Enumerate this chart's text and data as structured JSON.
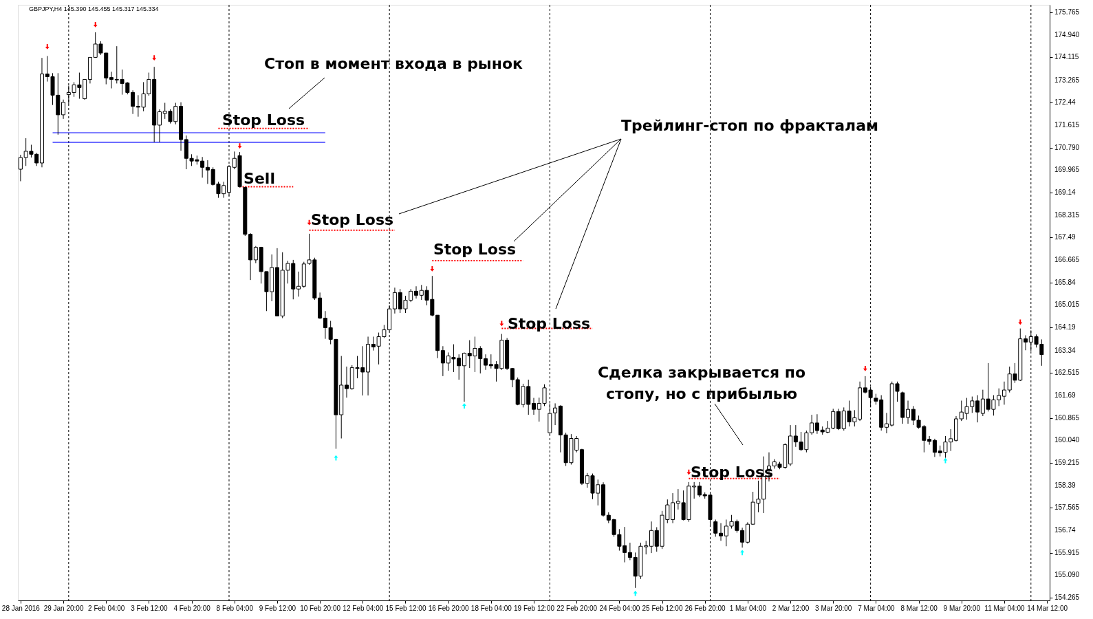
{
  "chart_data": {
    "type": "candlestick",
    "categories": [
      "28 Jan 2016",
      null,
      null,
      null,
      null,
      null,
      null,
      null,
      "29 Jan 20:00",
      null,
      null,
      null,
      null,
      null,
      null,
      null,
      "2 Feb 04:00",
      null,
      null,
      null,
      null,
      null,
      null,
      null,
      "3 Feb 12:00",
      null,
      null,
      null,
      null,
      null,
      null,
      null,
      "4 Feb 20:00",
      null,
      null,
      null,
      null,
      null,
      null,
      null,
      "8 Feb 04:00",
      null,
      null,
      null,
      null,
      null,
      null,
      null,
      "9 Feb 12:00",
      null,
      null,
      null,
      null,
      null,
      null,
      null,
      "10 Feb 20:00",
      null,
      null,
      null,
      null,
      null,
      null,
      null,
      "12 Feb 04:00",
      null,
      null,
      null,
      null,
      null,
      null,
      null,
      "15 Feb 12:00",
      null,
      null,
      null,
      null,
      null,
      null,
      null,
      "16 Feb 20:00",
      null,
      null,
      null,
      null,
      null,
      null,
      null,
      "18 Feb 04:00",
      null,
      null,
      null,
      null,
      null,
      null,
      null,
      "19 Feb 12:00",
      null,
      null,
      null,
      null,
      null,
      null,
      null,
      "22 Feb 20:00",
      null,
      null,
      null,
      null,
      null,
      null,
      null,
      "24 Feb 04:00",
      null,
      null,
      null,
      null,
      null,
      null,
      null,
      "25 Feb 12:00",
      null,
      null,
      null,
      null,
      null,
      null,
      null,
      "26 Feb 20:00",
      null,
      null,
      null,
      null,
      null,
      null,
      null,
      "1 Mar 04:00",
      null,
      null,
      null,
      null,
      null,
      null,
      null,
      "2 Mar 12:00",
      null,
      null,
      null,
      null,
      null,
      null,
      null,
      "3 Mar 20:00",
      null,
      null,
      null,
      null,
      null,
      null,
      null,
      "7 Mar 04:00",
      null,
      null,
      null,
      null,
      null,
      null,
      null,
      "8 Mar 12:00",
      null,
      null,
      null,
      null,
      null,
      null,
      null,
      "9 Mar 20:00",
      null,
      null,
      null,
      null,
      null,
      null,
      null,
      "11 Mar 04:00",
      null,
      null,
      null,
      null,
      null,
      null,
      null,
      "14 Mar 12:00"
    ],
    "ohlc": [
      [
        170.0,
        170.53,
        169.56,
        170.43
      ],
      [
        170.43,
        171.14,
        170.12,
        170.66
      ],
      [
        170.66,
        170.9,
        170.43,
        170.55
      ],
      [
        170.55,
        170.6,
        170.12,
        170.23
      ],
      [
        170.23,
        174.09,
        170.07,
        173.5
      ],
      [
        173.5,
        174.16,
        173.22,
        173.4
      ],
      [
        173.4,
        173.53,
        172.36,
        172.72
      ],
      [
        172.72,
        173.53,
        171.27,
        172.0
      ],
      [
        172.0,
        172.56,
        171.85,
        172.46
      ],
      [
        172.74,
        173.07,
        172.39,
        172.82
      ],
      [
        172.82,
        173.2,
        172.66,
        173.1
      ],
      [
        173.1,
        173.55,
        172.59,
        173.0
      ],
      [
        172.59,
        173.3,
        172.55,
        173.3
      ],
      [
        173.3,
        174.11,
        173.15,
        174.11
      ],
      [
        174.11,
        175.03,
        174.09,
        174.6
      ],
      [
        174.6,
        174.7,
        174.2,
        174.27
      ],
      [
        174.27,
        174.27,
        173.12,
        173.35
      ],
      [
        173.37,
        173.58,
        172.97,
        173.3
      ],
      [
        173.3,
        174.52,
        173.15,
        173.28
      ],
      [
        173.3,
        173.66,
        172.74,
        173.15
      ],
      [
        173.17,
        173.2,
        172.75,
        172.82
      ],
      [
        172.82,
        172.9,
        172.03,
        172.31
      ],
      [
        172.31,
        172.72,
        171.93,
        172.28
      ],
      [
        172.28,
        173.2,
        172.13,
        172.77
      ],
      [
        172.77,
        173.55,
        172.7,
        173.3
      ],
      [
        173.3,
        173.76,
        170.99,
        171.62
      ],
      [
        171.62,
        172.2,
        170.99,
        172.11
      ],
      [
        172.05,
        172.44,
        171.85,
        172.13
      ],
      [
        172.13,
        172.2,
        171.68,
        171.75
      ],
      [
        171.75,
        172.44,
        171.65,
        172.31
      ],
      [
        172.31,
        172.46,
        170.68,
        171.09
      ],
      [
        171.09,
        171.24,
        170.0,
        170.4
      ],
      [
        170.4,
        170.55,
        170.12,
        170.3
      ],
      [
        170.35,
        170.5,
        170.17,
        170.3
      ],
      [
        170.3,
        170.45,
        169.69,
        170.07
      ],
      [
        170.07,
        170.33,
        169.46,
        169.97
      ],
      [
        169.99,
        170.07,
        169.4,
        169.44
      ],
      [
        169.46,
        169.54,
        168.95,
        169.1
      ],
      [
        169.1,
        169.54,
        168.95,
        169.4
      ],
      [
        169.15,
        170.15,
        169.03,
        170.1
      ],
      [
        170.07,
        170.65,
        170.0,
        170.4
      ],
      [
        170.5,
        170.63,
        169.33,
        169.36
      ],
      [
        169.33,
        169.36,
        167.55,
        167.61
      ],
      [
        167.61,
        167.65,
        165.93,
        166.67
      ],
      [
        166.67,
        167.18,
        166.55,
        167.13
      ],
      [
        167.13,
        167.15,
        165.8,
        166.24
      ],
      [
        166.24,
        166.24,
        164.79,
        165.5
      ],
      [
        165.5,
        166.87,
        165.15,
        166.39
      ],
      [
        166.39,
        167.1,
        164.61,
        164.61
      ],
      [
        164.61,
        166.95,
        164.53,
        166.29
      ],
      [
        166.29,
        166.64,
        165.8,
        166.54
      ],
      [
        166.54,
        166.67,
        165.22,
        165.6
      ],
      [
        165.6,
        166.24,
        165.32,
        165.7
      ],
      [
        165.7,
        166.6,
        165.65,
        166.52
      ],
      [
        166.54,
        167.63,
        166.49,
        166.67
      ],
      [
        166.67,
        166.75,
        165.2,
        165.27
      ],
      [
        165.27,
        165.47,
        164.5,
        164.53
      ],
      [
        164.53,
        164.79,
        163.77,
        164.18
      ],
      [
        164.18,
        164.43,
        163.57,
        163.75
      ],
      [
        163.75,
        163.77,
        159.73,
        160.98
      ],
      [
        160.98,
        163.14,
        160.11,
        162.07
      ],
      [
        162.07,
        162.75,
        161.61,
        161.94
      ],
      [
        161.94,
        162.8,
        161.9,
        162.71
      ],
      [
        162.71,
        163.14,
        162.32,
        162.68
      ],
      [
        162.71,
        163.5,
        161.69,
        162.55
      ],
      [
        162.55,
        163.85,
        161.69,
        163.57
      ],
      [
        163.57,
        163.85,
        163.34,
        163.47
      ],
      [
        163.5,
        164.0,
        162.83,
        163.85
      ],
      [
        163.85,
        164.28,
        163.8,
        164.1
      ],
      [
        164.1,
        165.0,
        164.05,
        164.87
      ],
      [
        164.87,
        165.65,
        164.7,
        165.47
      ],
      [
        165.47,
        165.6,
        164.72,
        164.87
      ],
      [
        164.87,
        165.35,
        164.72,
        165.19
      ],
      [
        165.19,
        165.6,
        165.12,
        165.52
      ],
      [
        165.52,
        165.7,
        165.25,
        165.37
      ],
      [
        165.37,
        165.75,
        165.2,
        165.55
      ],
      [
        165.55,
        165.7,
        165.0,
        165.19
      ],
      [
        165.22,
        166.08,
        164.6,
        164.64
      ],
      [
        164.64,
        164.64,
        163.06,
        163.34
      ],
      [
        163.34,
        163.5,
        162.4,
        162.88
      ],
      [
        162.88,
        163.27,
        162.6,
        163.14
      ],
      [
        163.09,
        163.57,
        162.55,
        163.03
      ],
      [
        163.06,
        163.2,
        162.27,
        162.78
      ],
      [
        162.78,
        163.27,
        161.46,
        163.24
      ],
      [
        163.24,
        163.72,
        162.7,
        163.14
      ],
      [
        163.14,
        163.85,
        162.55,
        163.42
      ],
      [
        163.42,
        163.5,
        162.5,
        163.04
      ],
      [
        163.04,
        163.2,
        162.63,
        162.8
      ],
      [
        162.83,
        163.2,
        162.68,
        162.78
      ],
      [
        162.83,
        162.95,
        162.2,
        162.68
      ],
      [
        162.68,
        163.95,
        162.63,
        163.72
      ],
      [
        163.72,
        163.8,
        162.63,
        162.68
      ],
      [
        162.68,
        162.7,
        161.99,
        162.27
      ],
      [
        162.27,
        162.35,
        161.33,
        161.36
      ],
      [
        161.36,
        162.12,
        161.25,
        162.02
      ],
      [
        162.02,
        162.27,
        160.98,
        161.36
      ],
      [
        161.4,
        161.6,
        160.98,
        161.18
      ],
      [
        161.18,
        161.61,
        160.73,
        161.4
      ],
      [
        161.4,
        162.1,
        161.3,
        161.97
      ],
      [
        160.32,
        161.4,
        160.25,
        161.03
      ],
      [
        161.05,
        161.4,
        160.6,
        161.23
      ],
      [
        161.3,
        161.33,
        159.6,
        160.24
      ],
      [
        160.24,
        160.32,
        159.1,
        159.22
      ],
      [
        159.22,
        160.27,
        159.15,
        160.11
      ],
      [
        159.68,
        160.2,
        159.6,
        160.11
      ],
      [
        159.7,
        159.73,
        158.4,
        158.46
      ],
      [
        158.46,
        158.84,
        158.3,
        158.74
      ],
      [
        158.74,
        158.82,
        157.88,
        158.1
      ],
      [
        158.1,
        158.6,
        157.65,
        158.41
      ],
      [
        158.41,
        158.5,
        157.24,
        157.29
      ],
      [
        157.29,
        157.4,
        157.0,
        157.11
      ],
      [
        157.13,
        157.16,
        156.5,
        156.58
      ],
      [
        156.58,
        156.78,
        155.99,
        156.15
      ],
      [
        156.17,
        156.86,
        155.56,
        155.92
      ],
      [
        155.92,
        156.28,
        155.64,
        155.74
      ],
      [
        155.74,
        155.92,
        154.62,
        155.05
      ],
      [
        155.05,
        156.28,
        154.95,
        156.15
      ],
      [
        156.13,
        156.35,
        155.85,
        156.17
      ],
      [
        156.15,
        157.06,
        155.9,
        156.73
      ],
      [
        156.73,
        156.85,
        155.95,
        156.15
      ],
      [
        156.15,
        157.45,
        156.05,
        157.29
      ],
      [
        157.13,
        157.87,
        157.0,
        157.67
      ],
      [
        157.13,
        158.1,
        157.0,
        157.75
      ],
      [
        157.73,
        158.25,
        157.5,
        157.8
      ],
      [
        157.75,
        158.2,
        157.1,
        157.13
      ],
      [
        157.13,
        158.51,
        157.05,
        158.36
      ],
      [
        158.33,
        158.51,
        157.9,
        158.36
      ],
      [
        158.36,
        158.51,
        157.95,
        158.03
      ],
      [
        158.05,
        158.13,
        157.9,
        158.0
      ],
      [
        158.03,
        158.1,
        156.86,
        157.13
      ],
      [
        157.05,
        157.13,
        156.5,
        156.63
      ],
      [
        156.63,
        157.0,
        156.35,
        156.53
      ],
      [
        156.53,
        157.13,
        156.15,
        156.89
      ],
      [
        156.89,
        157.3,
        156.8,
        157.06
      ],
      [
        157.06,
        157.13,
        156.65,
        156.73
      ],
      [
        156.73,
        156.83,
        156.1,
        156.3
      ],
      [
        156.3,
        157.03,
        156.25,
        156.96
      ],
      [
        156.96,
        158.15,
        156.94,
        157.77
      ],
      [
        157.73,
        158.56,
        157.4,
        157.88
      ],
      [
        157.88,
        159.45,
        157.37,
        158.72
      ],
      [
        158.98,
        159.6,
        158.53,
        159.1
      ],
      [
        159.1,
        159.35,
        159.0,
        159.25
      ],
      [
        159.17,
        159.25,
        158.98,
        159.05
      ],
      [
        159.05,
        159.93,
        159.0,
        159.88
      ],
      [
        159.17,
        160.6,
        159.1,
        160.2
      ],
      [
        160.2,
        160.6,
        159.8,
        159.98
      ],
      [
        159.98,
        160.35,
        159.65,
        159.7
      ],
      [
        159.7,
        160.4,
        159.6,
        160.32
      ],
      [
        160.32,
        160.98,
        160.25,
        160.68
      ],
      [
        160.68,
        161.0,
        160.28,
        160.4
      ],
      [
        160.42,
        160.55,
        160.25,
        160.35
      ],
      [
        160.34,
        160.75,
        160.3,
        160.49
      ],
      [
        160.49,
        161.2,
        160.45,
        161.1
      ],
      [
        161.1,
        161.2,
        160.42,
        160.47
      ],
      [
        160.47,
        161.25,
        160.4,
        161.12
      ],
      [
        161.12,
        161.5,
        160.55,
        160.72
      ],
      [
        160.72,
        161.15,
        160.55,
        160.87
      ],
      [
        160.82,
        162.2,
        160.75,
        161.97
      ],
      [
        161.97,
        162.4,
        161.76,
        161.81
      ],
      [
        161.89,
        162.0,
        161.25,
        161.61
      ],
      [
        161.59,
        161.75,
        161.35,
        161.48
      ],
      [
        161.53,
        161.7,
        160.4,
        160.52
      ],
      [
        160.52,
        161.05,
        160.3,
        160.65
      ],
      [
        160.6,
        162.2,
        160.55,
        162.12
      ],
      [
        162.12,
        162.2,
        161.46,
        161.84
      ],
      [
        161.79,
        161.83,
        160.65,
        160.88
      ],
      [
        160.88,
        161.5,
        160.65,
        161.18
      ],
      [
        161.18,
        161.3,
        160.6,
        160.78
      ],
      [
        160.78,
        160.95,
        160.47,
        160.52
      ],
      [
        160.55,
        160.6,
        159.6,
        160.04
      ],
      [
        160.08,
        160.2,
        159.88,
        160.0
      ],
      [
        160.04,
        160.1,
        159.43,
        159.6
      ],
      [
        159.65,
        159.85,
        159.45,
        159.58
      ],
      [
        159.6,
        160.2,
        159.4,
        159.98
      ],
      [
        159.98,
        160.45,
        159.65,
        160.1
      ],
      [
        160.04,
        160.93,
        160.0,
        160.83
      ],
      [
        160.83,
        161.5,
        160.75,
        161.08
      ],
      [
        161.03,
        161.6,
        160.8,
        161.28
      ],
      [
        161.28,
        161.65,
        161.05,
        161.49
      ],
      [
        161.49,
        161.7,
        160.7,
        161.08
      ],
      [
        161.03,
        161.9,
        160.93,
        161.56
      ],
      [
        161.56,
        162.88,
        161.1,
        161.18
      ],
      [
        161.18,
        161.7,
        160.95,
        161.53
      ],
      [
        161.53,
        161.95,
        161.3,
        161.69
      ],
      [
        161.66,
        162.2,
        161.35,
        161.89
      ],
      [
        161.89,
        162.75,
        161.8,
        162.48
      ],
      [
        162.48,
        162.88,
        162.15,
        162.25
      ],
      [
        162.25,
        164.15,
        162.22,
        163.77
      ],
      [
        163.77,
        163.9,
        163.35,
        163.65
      ],
      [
        163.65,
        164.08,
        163.32,
        163.85
      ],
      [
        163.85,
        163.93,
        163.45,
        163.57
      ],
      [
        163.57,
        163.75,
        162.78,
        163.19
      ],
      null
    ],
    "ylim": [
      154.16,
      176.04
    ],
    "yticks": [
      175.765,
      {
        "value": 174.94,
        "label": "174.940"
      },
      174.115,
      173.265,
      172.44,
      171.615,
      {
        "value": 170.79,
        "label": "170.790"
      },
      169.965,
      169.14,
      168.315,
      167.49,
      166.665,
      165.84,
      165.015,
      164.19,
      163.34,
      162.515,
      161.69,
      160.865,
      {
        "value": 160.04,
        "label": "160.040"
      },
      159.215,
      158.39,
      157.565,
      156.74,
      155.915,
      {
        "value": 155.09,
        "label": "155.090"
      },
      154.265
    ],
    "grid": false,
    "series": [
      {
        "type": "scatter",
        "marker": "triangle",
        "color": "#ff0000",
        "values": [
          null,
          null,
          null,
          null,
          null,
          174.5,
          null,
          null,
          null,
          null,
          null,
          null,
          null,
          null,
          175.31,
          null,
          null,
          null,
          null,
          null,
          null,
          null,
          null,
          null,
          null,
          174.09,
          null,
          null,
          null,
          null,
          null,
          null,
          null,
          null,
          null,
          null,
          null,
          null,
          null,
          null,
          null,
          170.86,
          null,
          null,
          null,
          null,
          null,
          null,
          null,
          null,
          null,
          null,
          null,
          null,
          168.04,
          null,
          null,
          null,
          null,
          null,
          null,
          null,
          null,
          null,
          null,
          null,
          null,
          null,
          null,
          null,
          null,
          null,
          null,
          null,
          null,
          null,
          null,
          166.34,
          null,
          null,
          null,
          null,
          null,
          null,
          null,
          null,
          null,
          null,
          null,
          null,
          164.33,
          null,
          null,
          null,
          null,
          null,
          null,
          null,
          null,
          null,
          null,
          null,
          null,
          null,
          null,
          null,
          null,
          null,
          null,
          null,
          null,
          null,
          null,
          null,
          null,
          null,
          null,
          null,
          null,
          null,
          null,
          null,
          null,
          null,
          null,
          158.87,
          null,
          null,
          null,
          null,
          null,
          null,
          null,
          null,
          null,
          null,
          null,
          null,
          null,
          null,
          null,
          null,
          null,
          null,
          null,
          null,
          null,
          null,
          null,
          null,
          null,
          null,
          null,
          null,
          null,
          null,
          null,
          null,
          162.68,
          null,
          null,
          null,
          null,
          null,
          null,
          null,
          null,
          null,
          null,
          null,
          null,
          null,
          null,
          null,
          null,
          null,
          null,
          null,
          null,
          null,
          null,
          null,
          null,
          null,
          null,
          null,
          null,
          164.38,
          null,
          null,
          null,
          null,
          null
        ]
      },
      {
        "type": "scatter",
        "marker": "triangle",
        "color": "#00ffff",
        "values": [
          null,
          null,
          null,
          null,
          null,
          null,
          null,
          null,
          null,
          null,
          null,
          null,
          null,
          null,
          null,
          null,
          null,
          null,
          null,
          null,
          null,
          null,
          null,
          null,
          null,
          null,
          null,
          null,
          null,
          null,
          null,
          null,
          null,
          null,
          null,
          null,
          null,
          null,
          null,
          null,
          null,
          null,
          null,
          null,
          null,
          null,
          null,
          null,
          null,
          null,
          null,
          null,
          null,
          null,
          null,
          null,
          null,
          null,
          null,
          159.4,
          null,
          null,
          null,
          null,
          null,
          null,
          null,
          null,
          null,
          null,
          null,
          null,
          null,
          null,
          null,
          null,
          null,
          null,
          null,
          null,
          null,
          null,
          null,
          161.31,
          null,
          null,
          null,
          null,
          null,
          null,
          null,
          null,
          null,
          null,
          null,
          null,
          null,
          null,
          null,
          null,
          null,
          null,
          null,
          null,
          null,
          null,
          null,
          null,
          null,
          null,
          null,
          null,
          null,
          null,
          null,
          154.42,
          null,
          null,
          null,
          null,
          null,
          null,
          null,
          null,
          null,
          null,
          null,
          null,
          null,
          null,
          null,
          null,
          null,
          null,
          null,
          155.92,
          null,
          null,
          null,
          null,
          null,
          null,
          null,
          null,
          null,
          null,
          null,
          null,
          null,
          null,
          null,
          null,
          null,
          null,
          null,
          null,
          null,
          null,
          null,
          null,
          null,
          null,
          null,
          null,
          null,
          null,
          null,
          null,
          null,
          null,
          null,
          null,
          null,
          159.3,
          null,
          null,
          null,
          null,
          null,
          null,
          null,
          null,
          null,
          null,
          null,
          null,
          null,
          null,
          null,
          null,
          null,
          null,
          null
        ]
      },
      {
        "type": "line",
        "color": "#ff0000",
        "line_style": "dotted",
        "values": [
          null,
          null,
          null,
          null,
          null,
          null,
          null,
          null,
          null,
          null,
          null,
          null,
          null,
          null,
          null,
          null,
          null,
          null,
          null,
          null,
          null,
          null,
          null,
          null,
          null,
          null,
          null,
          null,
          null,
          null,
          null,
          null,
          null,
          null,
          null,
          null,
          null,
          171.5,
          171.5,
          171.5,
          171.5,
          171.5,
          171.5,
          171.5,
          171.5,
          171.5,
          171.5,
          171.5,
          171.5,
          171.5,
          171.5,
          171.5,
          171.5,
          171.5,
          171.5,
          null,
          null,
          null,
          null,
          null,
          null,
          null,
          null,
          null,
          null,
          null,
          null,
          null,
          null,
          null,
          null,
          null,
          null,
          null,
          null,
          null,
          null,
          166.64,
          166.64,
          166.64,
          166.64,
          166.64,
          166.64,
          166.64,
          166.64,
          166.64,
          166.64,
          166.64,
          166.64,
          166.64,
          166.64,
          166.64,
          166.64,
          166.64,
          166.64,
          null,
          null,
          null,
          null,
          null,
          null,
          null,
          null,
          null,
          null,
          null,
          null,
          null,
          null,
          null,
          null,
          null,
          null,
          null,
          null,
          null,
          null,
          null,
          null,
          null,
          null,
          null,
          null,
          null,
          null,
          158.64,
          158.64,
          158.64,
          158.64,
          158.64,
          158.64,
          158.64,
          158.64,
          158.64,
          158.64,
          158.64,
          158.64,
          158.64,
          158.64,
          158.64,
          158.64,
          158.64,
          158.64,
          null,
          null,
          null,
          null,
          null,
          null,
          null,
          null,
          null,
          null,
          null,
          null,
          null,
          null,
          null,
          null,
          null,
          null,
          null,
          null,
          null,
          null,
          null,
          null,
          null,
          null,
          null,
          null,
          null,
          null,
          null,
          null,
          null,
          null,
          null,
          null,
          null,
          null,
          null,
          null,
          null,
          null,
          null,
          null,
          null,
          null,
          null,
          null,
          null,
          null
        ]
      },
      {
        "type": "line",
        "color": "#ff0000",
        "line_style": "dotted",
        "values": [
          null,
          null,
          null,
          null,
          null,
          null,
          null,
          null,
          null,
          null,
          null,
          null,
          null,
          null,
          null,
          null,
          null,
          null,
          null,
          null,
          null,
          null,
          null,
          null,
          null,
          null,
          null,
          null,
          null,
          null,
          null,
          null,
          null,
          null,
          null,
          null,
          null,
          null,
          null,
          null,
          null,
          169.36,
          169.36,
          169.36,
          169.36,
          169.36,
          169.36,
          169.36,
          169.36,
          169.36,
          169.36,
          169.36,
          null,
          null,
          167.76,
          167.76,
          167.76,
          167.76,
          167.76,
          167.76,
          167.76,
          167.76,
          167.76,
          167.76,
          167.76,
          167.76,
          167.76,
          167.76,
          167.76,
          167.76,
          167.76,
          null,
          null,
          null,
          null,
          null,
          null,
          null,
          null,
          null,
          null,
          null,
          null,
          null,
          null,
          null,
          null,
          null,
          null,
          null,
          164.15,
          164.15,
          164.15,
          164.15,
          164.15,
          164.15,
          164.15,
          164.15,
          164.15,
          164.15,
          164.15,
          164.15,
          164.15,
          164.15,
          164.15,
          164.15,
          164.15,
          164.15,
          null,
          null,
          null,
          null,
          null,
          null,
          null,
          null,
          null,
          null,
          null,
          null,
          null,
          null,
          null,
          null,
          null,
          null,
          null,
          null,
          null,
          null,
          null,
          null,
          null,
          null,
          null,
          null,
          null,
          null,
          null,
          null,
          null,
          null,
          null,
          null,
          null,
          null,
          null,
          null,
          null,
          null,
          null,
          null,
          null,
          null,
          null,
          null,
          null,
          null,
          null,
          null,
          null,
          null,
          null,
          null,
          null,
          null,
          null,
          null,
          null,
          null,
          null,
          null,
          null,
          null,
          null,
          null,
          null,
          null,
          null,
          null,
          null,
          null,
          null,
          null,
          null,
          null,
          null,
          null,
          null,
          null,
          null,
          null,
          null
        ]
      },
      {
        "type": "line",
        "color": "#0000ff",
        "line_style": "solid",
        "values": [
          null,
          null,
          null,
          null,
          null,
          null,
          171.34,
          171.34,
          171.34,
          171.34,
          171.34,
          171.34,
          171.34,
          171.34,
          171.34,
          171.34,
          171.34,
          171.34,
          171.34,
          171.34,
          171.34,
          171.34,
          171.34,
          171.34,
          171.34,
          171.34,
          171.34,
          171.34,
          171.34,
          171.34,
          171.34,
          171.34,
          171.34,
          171.34,
          171.34,
          171.34,
          171.34,
          171.34,
          171.34,
          171.34,
          171.34,
          171.34,
          171.34,
          171.34,
          171.34,
          171.34,
          171.34,
          171.34,
          171.34,
          171.34,
          171.34,
          171.34,
          171.34,
          171.34,
          171.34,
          171.34,
          171.34,
          171.34,
          null,
          null,
          null,
          null,
          null,
          null,
          null,
          null,
          null,
          null,
          null,
          null,
          null,
          null,
          null,
          null,
          null,
          null,
          null,
          null,
          null,
          null,
          null,
          null,
          null,
          null,
          null,
          null,
          null,
          null,
          null,
          null,
          null,
          null,
          null,
          null,
          null,
          null,
          null,
          null,
          null,
          null,
          null,
          null,
          null,
          null,
          null,
          null,
          null,
          null,
          null,
          null,
          null,
          null,
          null,
          null,
          null,
          null,
          null,
          null,
          null,
          null,
          null,
          null,
          null,
          null,
          null,
          null,
          null,
          null,
          null,
          null,
          null,
          null,
          null,
          null,
          null,
          null,
          null,
          null,
          null,
          null,
          null,
          null,
          null,
          null,
          null,
          null,
          null,
          null,
          null,
          null,
          null,
          null,
          null,
          null,
          null,
          null,
          null,
          null,
          null,
          null,
          null,
          null,
          null,
          null,
          null,
          null,
          null,
          null,
          null,
          null,
          null,
          null,
          null,
          null,
          null,
          null,
          null,
          null,
          null,
          null,
          null,
          null,
          null,
          null,
          null,
          null,
          null,
          null,
          null,
          null,
          null,
          null,
          null
        ]
      },
      {
        "type": "line",
        "color": "#0000ff",
        "line_style": "solid",
        "values": [
          null,
          null,
          null,
          null,
          null,
          null,
          170.99,
          170.99,
          170.99,
          170.99,
          170.99,
          170.99,
          170.99,
          170.99,
          170.99,
          170.99,
          170.99,
          170.99,
          170.99,
          170.99,
          170.99,
          170.99,
          170.99,
          170.99,
          170.99,
          170.99,
          170.99,
          170.99,
          170.99,
          170.99,
          170.99,
          170.99,
          170.99,
          170.99,
          170.99,
          170.99,
          170.99,
          170.99,
          170.99,
          170.99,
          170.99,
          170.99,
          170.99,
          170.99,
          170.99,
          170.99,
          170.99,
          170.99,
          170.99,
          170.99,
          170.99,
          170.99,
          170.99,
          170.99,
          170.99,
          170.99,
          170.99,
          170.99,
          null,
          null,
          null,
          null,
          null,
          null,
          null,
          null,
          null,
          null,
          null,
          null,
          null,
          null,
          null,
          null,
          null,
          null,
          null,
          null,
          null,
          null,
          null,
          null,
          null,
          null,
          null,
          null,
          null,
          null,
          null,
          null,
          null,
          null,
          null,
          null,
          null,
          null,
          null,
          null,
          null,
          null,
          null,
          null,
          null,
          null,
          null,
          null,
          null,
          null,
          null,
          null,
          null,
          null,
          null,
          null,
          null,
          null,
          null,
          null,
          null,
          null,
          null,
          null,
          null,
          null,
          null,
          null,
          null,
          null,
          null,
          null,
          null,
          null,
          null,
          null,
          null,
          null,
          null,
          null,
          null,
          null,
          null,
          null,
          null,
          null,
          null,
          null,
          null,
          null,
          null,
          null,
          null,
          null,
          null,
          null,
          null,
          null,
          null,
          null,
          null,
          null,
          null,
          null,
          null,
          null,
          null,
          null,
          null,
          null,
          null,
          null,
          null,
          null,
          null,
          null,
          null,
          null,
          null,
          null,
          null,
          null,
          null,
          null,
          null,
          null,
          null,
          null,
          null,
          null,
          null,
          null,
          null,
          null,
          null
        ]
      }
    ],
    "annotations": [
      "GBPJPY,H4  145.390 145.455 145.317 145.334",
      "Стоп в момент входа в рынок",
      "Stop Loss",
      "Sell",
      "Stop Loss",
      "Stop Loss",
      "Stop Loss",
      "Трейлинг-стоп по фракталам",
      "Сделка закрывается по\nстопу, но с прибылью",
      "Stop Loss"
    ]
  }
}
